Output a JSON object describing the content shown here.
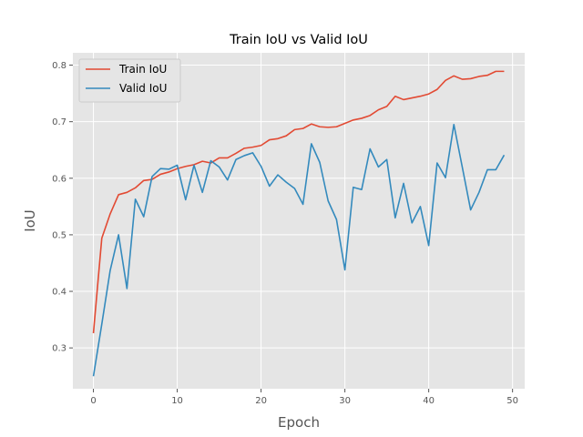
{
  "chart_data": {
    "type": "line",
    "title": "Train IoU vs Valid IoU",
    "xlabel": "Epoch",
    "ylabel": "IoU",
    "xlim": [
      -2.45,
      51.45
    ],
    "ylim": [
      0.2278,
      0.8218
    ],
    "xticks": [
      0,
      10,
      20,
      30,
      40,
      50
    ],
    "yticks": [
      0.3,
      0.4,
      0.5,
      0.6,
      0.7,
      0.8
    ],
    "xtick_labels": [
      "0",
      "10",
      "20",
      "30",
      "40",
      "50"
    ],
    "ytick_labels": [
      "0.3",
      "0.4",
      "0.5",
      "0.6",
      "0.7",
      "0.8"
    ],
    "grid": true,
    "legend_position": "top-left",
    "x": [
      0,
      1,
      2,
      3,
      4,
      5,
      6,
      7,
      8,
      9,
      10,
      11,
      12,
      13,
      14,
      15,
      16,
      17,
      18,
      19,
      20,
      21,
      22,
      23,
      24,
      25,
      26,
      27,
      28,
      29,
      30,
      31,
      32,
      33,
      34,
      35,
      36,
      37,
      38,
      39,
      40,
      41,
      42,
      43,
      44,
      45,
      46,
      47,
      48,
      49
    ],
    "series": [
      {
        "name": "Train IoU",
        "color": "#e24a33",
        "values": [
          0.326,
          0.494,
          0.537,
          0.571,
          0.575,
          0.583,
          0.596,
          0.598,
          0.607,
          0.611,
          0.617,
          0.621,
          0.624,
          0.63,
          0.627,
          0.636,
          0.636,
          0.644,
          0.653,
          0.655,
          0.658,
          0.668,
          0.67,
          0.675,
          0.686,
          0.688,
          0.696,
          0.691,
          0.69,
          0.691,
          0.697,
          0.703,
          0.706,
          0.711,
          0.721,
          0.727,
          0.745,
          0.739,
          0.742,
          0.745,
          0.749,
          0.757,
          0.773,
          0.781,
          0.775,
          0.776,
          0.78,
          0.782,
          0.789,
          0.789
        ]
      },
      {
        "name": "Valid IoU",
        "color": "#348abd",
        "values": [
          0.25,
          0.342,
          0.437,
          0.5,
          0.405,
          0.563,
          0.532,
          0.603,
          0.617,
          0.616,
          0.623,
          0.562,
          0.623,
          0.575,
          0.631,
          0.62,
          0.597,
          0.633,
          0.64,
          0.645,
          0.621,
          0.586,
          0.606,
          0.593,
          0.582,
          0.554,
          0.661,
          0.628,
          0.56,
          0.527,
          0.438,
          0.584,
          0.58,
          0.652,
          0.62,
          0.633,
          0.53,
          0.591,
          0.521,
          0.55,
          0.481,
          0.627,
          0.601,
          0.695,
          0.62,
          0.544,
          0.575,
          0.615,
          0.615,
          0.641
        ]
      }
    ]
  }
}
